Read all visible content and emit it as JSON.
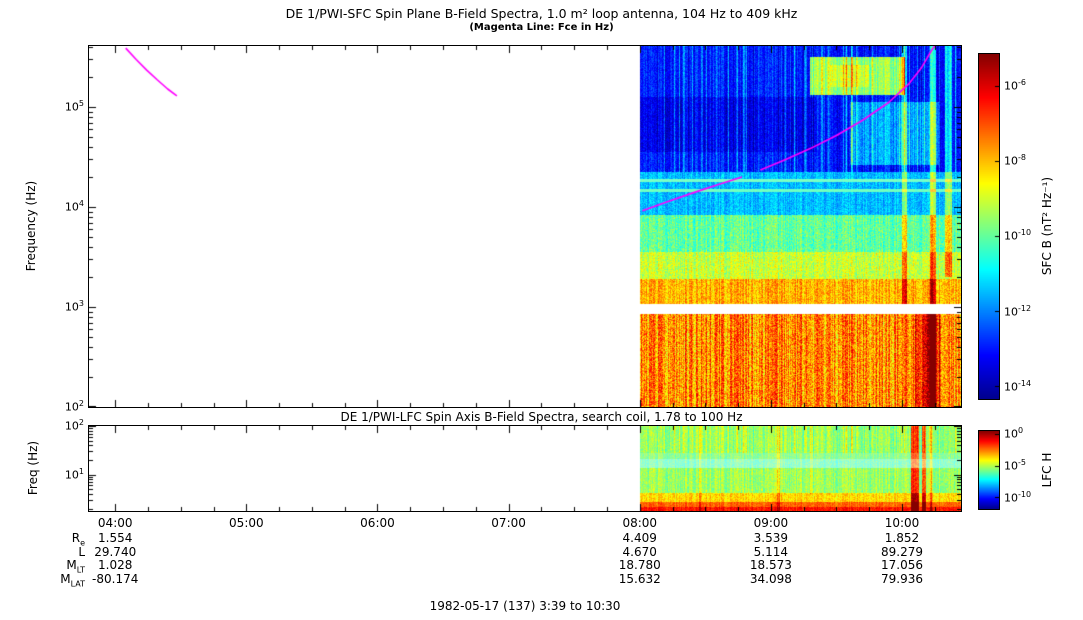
{
  "chart_data": {
    "type": "spectrogram",
    "caption": "1982-05-17 (137) 3:39 to 10:30",
    "time_axis": {
      "start_hour": 3.8,
      "end_hour": 10.45,
      "tick_hours": [
        4,
        5,
        6,
        7,
        8,
        9,
        10
      ],
      "tick_labels": [
        "04:00",
        "05:00",
        "06:00",
        "07:00",
        "08:00",
        "09:00",
        "10:00"
      ]
    },
    "ephemeris": {
      "row_labels": [
        [
          "R",
          "e"
        ],
        [
          "L",
          ""
        ],
        [
          "M",
          "LT"
        ],
        [
          "M",
          "LAT"
        ]
      ],
      "column_hours": [
        4,
        8,
        9,
        10
      ],
      "rows": [
        [
          "1.554",
          "4.409",
          "3.539",
          "1.852"
        ],
        [
          "29.740",
          "4.670",
          "5.114",
          "89.279"
        ],
        [
          "1.028",
          "18.780",
          "18.573",
          "17.056"
        ],
        [
          "-80.174",
          "15.632",
          "34.098",
          "79.936"
        ]
      ]
    },
    "panels": [
      {
        "type": "heatmap",
        "title": "DE 1/PWI-SFC  Spin Plane B-Field Spectra, 1.0 m² loop antenna, 104 Hz to 409 kHz",
        "subtitle": "(Magenta Line: Fce in Hz)",
        "ylabel": "Frequency (Hz)",
        "y_scale": "log",
        "f_min_hz": 104,
        "f_max_hz": 409000,
        "log_f_min": 2.0,
        "log_f_max": 5.612,
        "y_tick_exponents": [
          5,
          4,
          3,
          2
        ],
        "data_start_hour": 8.0,
        "colorbar": {
          "label": "SFC B (nT² Hz⁻¹)",
          "tick_exponents": [
            -6,
            -8,
            -10,
            -12,
            -14
          ],
          "top_exp": -5.15,
          "bottom_exp": -14.32
        },
        "fce_color": "#ff00ff",
        "fce_segments_hz": [
          [
            [
              4.08,
              390000
            ],
            [
              4.16,
              300000
            ],
            [
              4.24,
              235000
            ],
            [
              4.32,
              188000
            ],
            [
              4.4,
              152000
            ],
            [
              4.47,
              130000
            ]
          ],
          [
            [
              8.02,
              9200
            ],
            [
              8.2,
              11200
            ],
            [
              8.4,
              13800
            ],
            [
              8.6,
              16800
            ],
            [
              8.78,
              20000
            ]
          ],
          [
            [
              8.92,
              23500
            ],
            [
              9.1,
              29500
            ],
            [
              9.3,
              38500
            ],
            [
              9.5,
              52000
            ],
            [
              9.7,
              74000
            ],
            [
              9.9,
              112000
            ],
            [
              10.05,
              170000
            ],
            [
              10.15,
              250000
            ],
            [
              10.22,
              360000
            ],
            [
              10.26,
              430000
            ]
          ]
        ],
        "bands": [
          {
            "f0": 4.35,
            "f1": 5.62,
            "v": 0.14,
            "noise": 0.05,
            "colnoise": 0.05,
            "stripe": 0.16
          },
          {
            "f0": 3.92,
            "f1": 4.35,
            "v": 0.31,
            "noise": 0.05,
            "colnoise": 0.04
          },
          {
            "f0": 3.55,
            "f1": 3.92,
            "v": 0.47,
            "noise": 0.07,
            "colnoise": 0.05
          },
          {
            "f0": 3.28,
            "f1": 3.55,
            "v": 0.57,
            "noise": 0.07,
            "colnoise": 0.05
          },
          {
            "f0": 3.03,
            "f1": 3.28,
            "v": 0.7,
            "noise": 0.07,
            "colnoise": 0.06
          },
          {
            "f0": 2.93,
            "f1": 3.03,
            "gap": true
          },
          {
            "f0": 2.0,
            "f1": 2.93,
            "v": 0.74,
            "noise": 0.1,
            "colnoise": 0.1
          }
        ],
        "features": [
          {
            "t0": 8.0,
            "t1": 9.35,
            "f0": 4.55,
            "f1": 5.1,
            "add": -0.05
          },
          {
            "t0": 9.3,
            "t1": 10.02,
            "f0": 5.12,
            "f1": 5.5,
            "add": 0.38
          },
          {
            "t0": 9.45,
            "t1": 9.75,
            "f0": 5.2,
            "f1": 5.42,
            "add": 0.07
          },
          {
            "t0": 9.6,
            "t1": 10.28,
            "f0": 4.42,
            "f1": 5.05,
            "add": 0.15
          },
          {
            "t0": 8.0,
            "t1": 10.45,
            "f0": 4.155,
            "f1": 4.185,
            "set": 0.45,
            "white": 0.2
          },
          {
            "t0": 8.0,
            "t1": 10.45,
            "f0": 4.25,
            "f1": 4.28,
            "set": 0.45,
            "white": 0.25
          },
          {
            "t0": 10.0,
            "t1": 10.04,
            "f0": 3.03,
            "f1": 5.62,
            "add": 0.18
          },
          {
            "t0": 10.21,
            "t1": 10.26,
            "f0": 2.0,
            "f1": 5.62,
            "add": 0.25
          },
          {
            "t0": 10.33,
            "t1": 10.38,
            "f0": 3.3,
            "f1": 5.62,
            "add": 0.2
          },
          {
            "t0": 10.1,
            "t1": 10.3,
            "f0": 2.0,
            "f1": 2.93,
            "add": 0.13
          },
          {
            "t0": 10.18,
            "t1": 10.27,
            "f0": 2.0,
            "f1": 2.93,
            "add": 0.06
          }
        ]
      },
      {
        "type": "heatmap",
        "title": "DE 1/PWI-LFC  Spin Axis B-Field Spectra, search coil, 1.78 to 100 Hz",
        "ylabel": "Freq (Hz)",
        "y_scale": "log",
        "f_min_hz": 1.78,
        "f_max_hz": 100,
        "log_f_min": 0.25,
        "log_f_max": 2.0,
        "y_tick_exponents": [
          2,
          1
        ],
        "data_start_hour": 8.0,
        "colorbar": {
          "label": "LFC H",
          "tick_exponents": [
            0,
            -5,
            -10
          ],
          "top_exp": 0.45,
          "bottom_exp": -11.7
        },
        "bands": [
          {
            "f0": 1.45,
            "f1": 2.01,
            "v": 0.52,
            "noise": 0.05,
            "colnoise": 0.05,
            "stripe": 0.08
          },
          {
            "f0": 1.33,
            "f1": 1.45,
            "v": 0.5,
            "noise": 0.04,
            "colnoise": 0.04,
            "white": 0.15
          },
          {
            "f0": 1.13,
            "f1": 1.33,
            "v": 0.46,
            "noise": 0.05,
            "colnoise": 0.04,
            "white": 0.4
          },
          {
            "f0": 0.62,
            "f1": 1.13,
            "v": 0.53,
            "noise": 0.05,
            "colnoise": 0.05
          },
          {
            "f0": 0.44,
            "f1": 0.62,
            "v": 0.66,
            "noise": 0.05,
            "colnoise": 0.04
          },
          {
            "f0": 0.34,
            "f1": 0.44,
            "v": 0.78,
            "noise": 0.04,
            "colnoise": 0.03
          },
          {
            "f0": 0.24,
            "f1": 0.34,
            "v": 0.86,
            "noise": 0.04,
            "colnoise": 0.03
          }
        ],
        "features": [
          {
            "t0": 10.07,
            "t1": 10.13,
            "f0": 0.24,
            "f1": 2.01,
            "add": 0.3
          },
          {
            "t0": 10.15,
            "t1": 10.18,
            "f0": 0.24,
            "f1": 2.01,
            "add": 0.25
          },
          {
            "t0": 10.21,
            "t1": 10.23,
            "f0": 0.24,
            "f1": 2.01,
            "add": 0.15
          },
          {
            "t0": 8.45,
            "t1": 8.47,
            "f0": 0.24,
            "f1": 2.01,
            "add": 0.12
          },
          {
            "t0": 9.05,
            "t1": 9.07,
            "f0": 0.24,
            "f1": 2.01,
            "add": 0.12
          },
          {
            "t0": 9.3,
            "t1": 9.32,
            "f0": 0.6,
            "f1": 2.01,
            "add": 0.08
          }
        ]
      }
    ]
  }
}
